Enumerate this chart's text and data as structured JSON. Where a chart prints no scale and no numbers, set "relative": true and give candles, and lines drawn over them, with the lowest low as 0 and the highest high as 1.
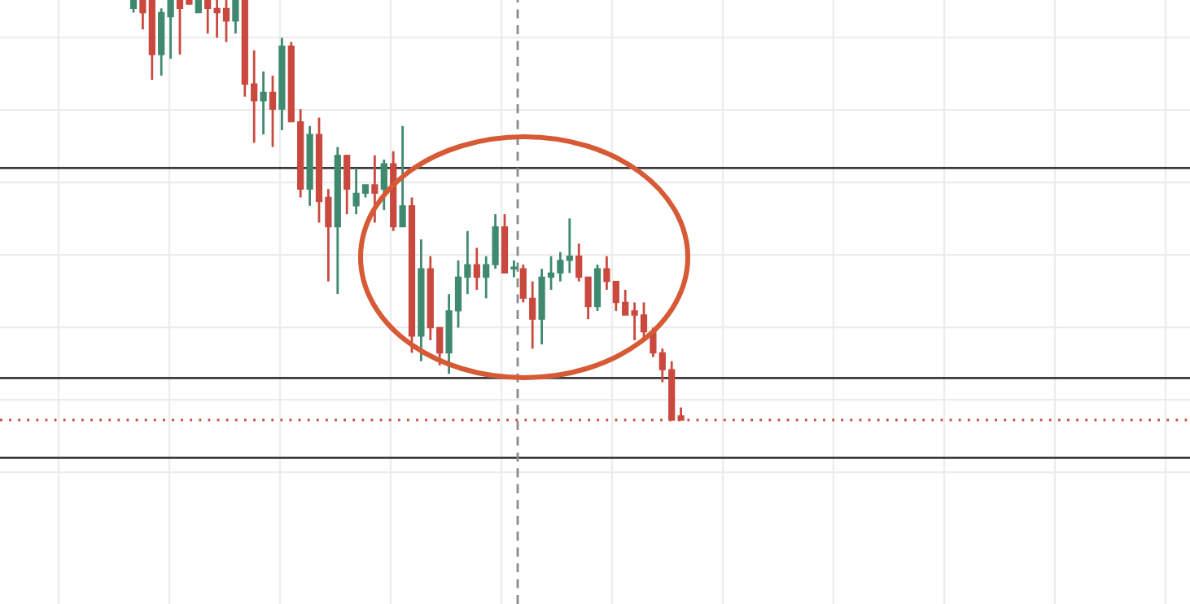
{
  "chart_data": {
    "type": "candlestick",
    "relative": true,
    "grid": true,
    "categories": [
      null,
      null,
      null,
      null,
      null,
      null,
      null,
      null,
      null,
      null,
      null,
      null,
      null,
      null,
      null,
      null,
      null,
      null,
      null,
      null,
      null,
      null,
      null,
      null,
      null,
      null,
      null,
      null,
      null,
      null,
      null,
      null,
      null,
      null,
      null,
      null,
      null,
      null,
      null,
      null,
      null,
      null,
      null,
      null,
      null,
      null,
      null,
      null,
      null,
      null,
      null,
      null,
      null,
      null,
      null,
      null,
      null,
      null,
      null,
      null
    ],
    "ohlc": [
      [
        0.98,
        1,
        0.97,
        1
      ],
      [
        1,
        1,
        0.93,
        0.97
      ],
      [
        1,
        1,
        0.81,
        0.87
      ],
      [
        0.87,
        0.98,
        0.82,
        0.97
      ],
      [
        0.96,
        1,
        0.86,
        1
      ],
      [
        1,
        1,
        0.87,
        0.98
      ],
      [
        1,
        1,
        0.99,
        0.99
      ],
      [
        0.97,
        1,
        0.97,
        1
      ],
      [
        1,
        1,
        0.92,
        0.98
      ],
      [
        0.98,
        1,
        0.91,
        0.97
      ],
      [
        0.98,
        1,
        0.9,
        0.95
      ],
      [
        0.95,
        1,
        0.92,
        1
      ],
      [
        1,
        1,
        0.77,
        0.8
      ],
      [
        0.8,
        0.88,
        0.66,
        0.76
      ],
      [
        0.76,
        0.83,
        0.68,
        0.78
      ],
      [
        0.78,
        0.82,
        0.65,
        0.74
      ],
      [
        0.74,
        0.91,
        0.69,
        0.89
      ],
      [
        0.89,
        0.9,
        0.71,
        0.71
      ],
      [
        0.71,
        0.74,
        0.53,
        0.55
      ],
      [
        0.55,
        0.7,
        0.51,
        0.68
      ],
      [
        0.68,
        0.72,
        0.47,
        0.52
      ],
      [
        0.53,
        0.55,
        0.33,
        0.46
      ],
      [
        0.46,
        0.65,
        0.3,
        0.63
      ],
      [
        0.63,
        0.63,
        0.49,
        0.55
      ],
      [
        0.51,
        0.6,
        0.49,
        0.54
      ],
      [
        0.54,
        0.56,
        0.53,
        0.56
      ],
      [
        0.56,
        0.63,
        0.47,
        0.54
      ],
      [
        0.55,
        0.62,
        0.5,
        0.61
      ],
      [
        0.61,
        0.64,
        0.45,
        0.46
      ],
      [
        0.46,
        0.7,
        0.46,
        0.51
      ],
      [
        0.51,
        0.53,
        0.16,
        0.2
      ],
      [
        0.2,
        0.43,
        0.14,
        0.36
      ],
      [
        0.36,
        0.39,
        0.19,
        0.22
      ],
      [
        0.22,
        0.22,
        0.13,
        0.16
      ],
      [
        0.16,
        0.3,
        0.11,
        0.26
      ],
      [
        0.26,
        0.38,
        0.22,
        0.34
      ],
      [
        0.34,
        0.45,
        0.3,
        0.37
      ],
      [
        0.37,
        0.41,
        0.31,
        0.34
      ],
      [
        0.34,
        0.39,
        0.29,
        0.37
      ],
      [
        0.37,
        0.49,
        0.36,
        0.46
      ],
      [
        0.46,
        0.49,
        0.35,
        0.35
      ],
      [
        0.36,
        0.38,
        0.34,
        0.36
      ],
      [
        0.36,
        0.37,
        0.28,
        0.29
      ],
      [
        0.29,
        0.33,
        0.17,
        0.24
      ],
      [
        0.24,
        0.36,
        0.18,
        0.34
      ],
      [
        0.34,
        0.39,
        0.31,
        0.35
      ],
      [
        0.35,
        0.4,
        0.33,
        0.38
      ],
      [
        0.38,
        0.48,
        0.35,
        0.39
      ],
      [
        0.39,
        0.42,
        0.33,
        0.34
      ],
      [
        0.34,
        0.34,
        0.24,
        0.27
      ],
      [
        0.27,
        0.37,
        0.26,
        0.36
      ],
      [
        0.36,
        0.39,
        0.31,
        0.33
      ],
      [
        0.33,
        0.33,
        0.26,
        0.28
      ],
      [
        0.28,
        0.31,
        0.25,
        0.25
      ],
      [
        0.26,
        0.28,
        0.19,
        0.25
      ],
      [
        0.25,
        0.28,
        0.19,
        0.21
      ],
      [
        0.21,
        0.22,
        0.15,
        0.16
      ],
      [
        0.16,
        0.17,
        0.09,
        0.12
      ],
      [
        0.12,
        0.14,
        0,
        0
      ],
      [
        0.01,
        0.03,
        0,
        0
      ]
    ],
    "colors": [
      "#3f8a6f",
      "#c9493f",
      "#c9493f",
      "#3f8a6f",
      "#3f8a6f",
      "#c9493f",
      "#c9493f",
      "#3f8a6f",
      "#c9493f",
      "#c9493f",
      "#c9493f",
      "#3f8a6f",
      "#c9493f",
      "#c9493f",
      "#3f8a6f",
      "#c9493f",
      "#3f8a6f",
      "#c9493f",
      "#c9493f",
      "#3f8a6f",
      "#c9493f",
      "#c9493f",
      "#3f8a6f",
      "#c9493f",
      "#3f8a6f",
      "#3f8a6f",
      "#c9493f",
      "#3f8a6f",
      "#c9493f",
      "#3f8a6f",
      "#c9493f",
      "#3f8a6f",
      "#c9493f",
      "#c9493f",
      "#3f8a6f",
      "#3f8a6f",
      "#3f8a6f",
      "#c9493f",
      "#3f8a6f",
      "#3f8a6f",
      "#c9493f",
      "#3f8a6f",
      "#c9493f",
      "#c9493f",
      "#3f8a6f",
      "#3f8a6f",
      "#3f8a6f",
      "#3f8a6f",
      "#c9493f",
      "#c9493f",
      "#3f8a6f",
      "#c9493f",
      "#c9493f",
      "#c9493f",
      "#c9493f",
      "#c9493f",
      "#c9493f",
      "#c9493f",
      "#c9493f",
      "#c9493f"
    ],
    "ref_lines": [
      {
        "axis": "y",
        "value": 0.6,
        "color": "#3a3a3a",
        "line_style": "solid"
      },
      {
        "axis": "y",
        "value": 0.1,
        "color": "#3a3a3a",
        "line_style": "solid"
      },
      {
        "axis": "y",
        "value": -0.09,
        "color": "#3a3a3a",
        "line_style": "solid"
      },
      {
        "axis": "y",
        "value": 0,
        "color": "#c9493f",
        "line_style": "dotted"
      }
    ]
  }
}
